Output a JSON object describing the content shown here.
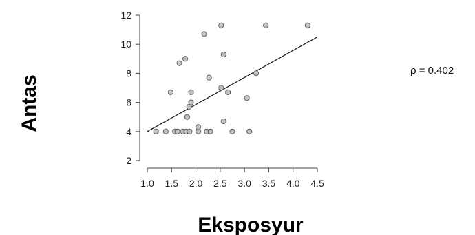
{
  "chart_data": {
    "type": "scatter",
    "title": "",
    "xlabel": "Eksposyur",
    "ylabel": "Antas",
    "xlim": [
      1.0,
      4.5
    ],
    "ylim": [
      2,
      12
    ],
    "xticks": [
      "1.0",
      "1.5",
      "2.0",
      "2.5",
      "3.0",
      "3.5",
      "4.0",
      "4.5"
    ],
    "yticks": [
      "2",
      "4",
      "6",
      "8",
      "10",
      "12"
    ],
    "grid": false,
    "annotation": "ρ = 0.402",
    "colors": {
      "point_fill": "#c0c0c0",
      "point_stroke": "#555555",
      "line": "#111111"
    },
    "trend_line": {
      "x": [
        1.0,
        4.5
      ],
      "y": [
        4.0,
        10.5
      ]
    },
    "points": [
      {
        "x": 1.18,
        "y": 4.0
      },
      {
        "x": 1.38,
        "y": 4.0
      },
      {
        "x": 1.48,
        "y": 6.7
      },
      {
        "x": 1.57,
        "y": 4.0
      },
      {
        "x": 1.62,
        "y": 4.0
      },
      {
        "x": 1.66,
        "y": 8.7
      },
      {
        "x": 1.73,
        "y": 4.0
      },
      {
        "x": 1.78,
        "y": 9.0
      },
      {
        "x": 1.8,
        "y": 4.0
      },
      {
        "x": 1.82,
        "y": 5.0
      },
      {
        "x": 1.86,
        "y": 5.7
      },
      {
        "x": 1.87,
        "y": 4.0
      },
      {
        "x": 1.9,
        "y": 6.0
      },
      {
        "x": 1.9,
        "y": 6.7
      },
      {
        "x": 2.05,
        "y": 4.0
      },
      {
        "x": 2.05,
        "y": 4.3
      },
      {
        "x": 2.17,
        "y": 10.7
      },
      {
        "x": 2.22,
        "y": 4.0
      },
      {
        "x": 2.27,
        "y": 7.7
      },
      {
        "x": 2.3,
        "y": 4.0
      },
      {
        "x": 2.52,
        "y": 11.3
      },
      {
        "x": 2.52,
        "y": 7.0
      },
      {
        "x": 2.57,
        "y": 9.3
      },
      {
        "x": 2.57,
        "y": 4.7
      },
      {
        "x": 2.66,
        "y": 6.7
      },
      {
        "x": 2.75,
        "y": 4.0
      },
      {
        "x": 3.05,
        "y": 6.3
      },
      {
        "x": 3.1,
        "y": 4.0
      },
      {
        "x": 3.24,
        "y": 8.0
      },
      {
        "x": 3.44,
        "y": 11.3
      },
      {
        "x": 4.3,
        "y": 11.3
      }
    ]
  }
}
